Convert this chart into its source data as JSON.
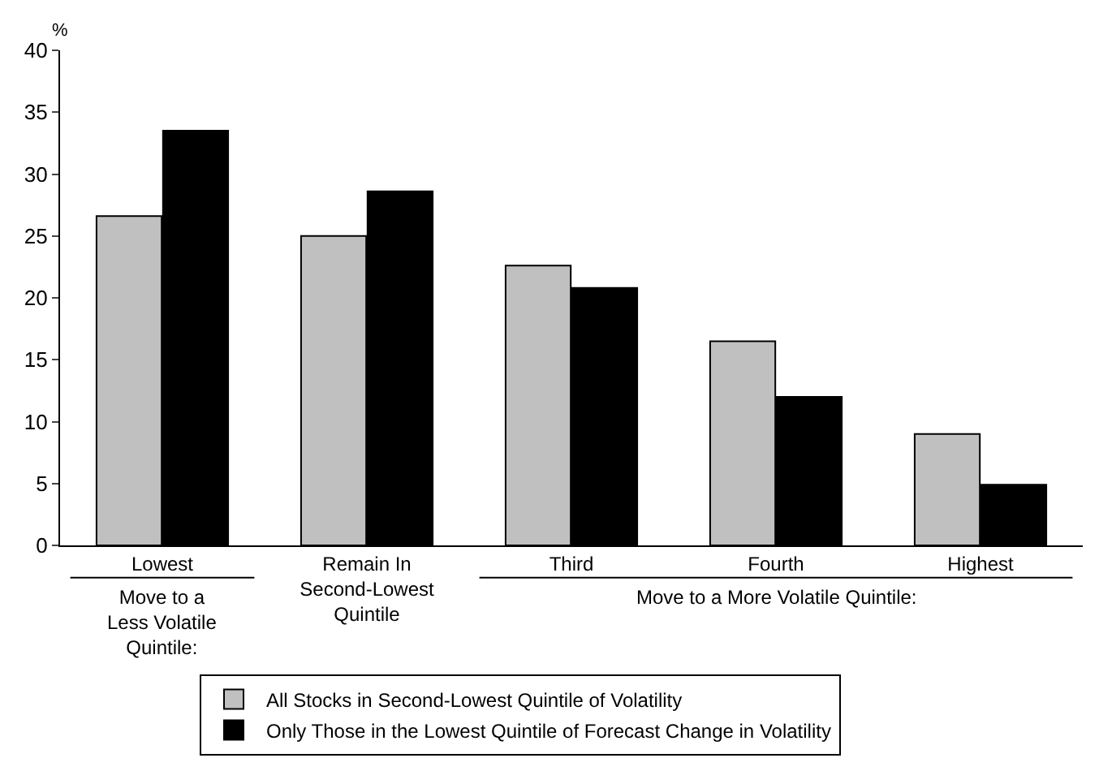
{
  "chart_data": {
    "type": "bar",
    "ylabel": "%",
    "categories": [
      "Lowest",
      "Remain In Second-Lowest Quintile",
      "Third",
      "Fourth",
      "Highest"
    ],
    "series": [
      {
        "name": "All Stocks in Second-Lowest Quintile of Volatility",
        "color": "#c0c0c0",
        "values": [
          26.6,
          25.0,
          22.6,
          16.5,
          9.0
        ]
      },
      {
        "name": "Only Those in the Lowest Quintile of Forecast Change in Volatility",
        "color": "#000000",
        "values": [
          33.5,
          28.6,
          20.8,
          12.0,
          4.9
        ]
      }
    ],
    "annotations": [
      "Move to a Less Volatile Quintile:",
      "Move to a More Volatile Quintile:"
    ],
    "ylim": [
      0,
      40
    ],
    "yticks": [
      0,
      5,
      10,
      15,
      20,
      25,
      30,
      35,
      40
    ],
    "legend": "bottom"
  }
}
